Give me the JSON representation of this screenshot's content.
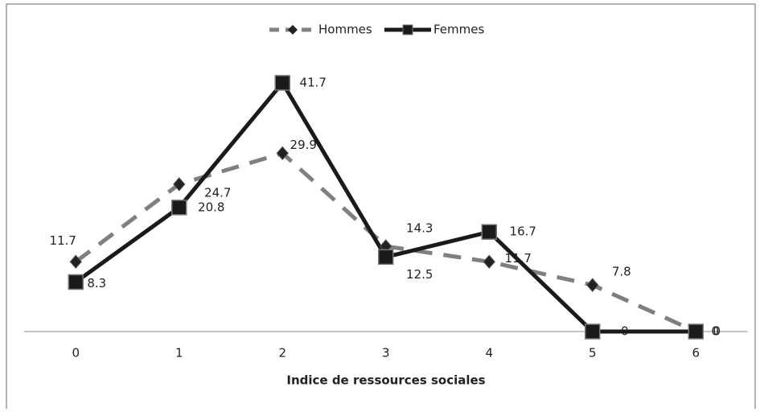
{
  "chart_data": {
    "type": "line",
    "x_label": "Indice de ressources sociales",
    "categories": [
      "0",
      "1",
      "2",
      "3",
      "4",
      "5",
      "6"
    ],
    "series": [
      {
        "name": "Hommes",
        "color": "#7f7f7f",
        "dash": true,
        "marker": "diamond",
        "values": [
          11.7,
          24.7,
          29.9,
          14.3,
          11.7,
          7.8,
          0
        ]
      },
      {
        "name": "Femmes",
        "color": "#1a1a1a",
        "dash": false,
        "marker": "square",
        "values": [
          8.3,
          20.8,
          41.7,
          12.5,
          16.7,
          0,
          0
        ]
      }
    ],
    "ylim": [
      0,
      45
    ],
    "legend": "top"
  }
}
